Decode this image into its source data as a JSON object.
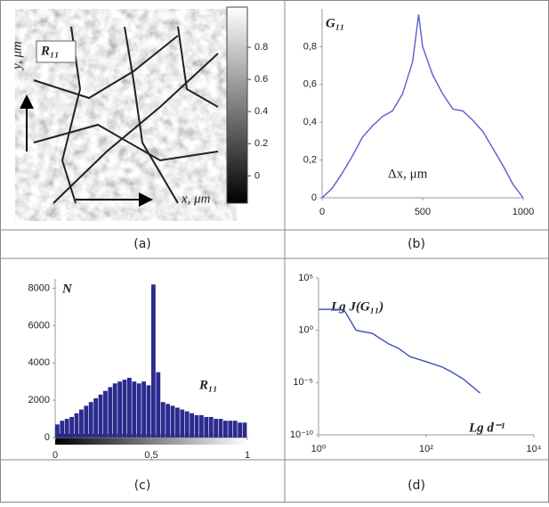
{
  "image_panel": {
    "label": "R₁₁",
    "y_label": "y, μm",
    "x_label": "x, μm",
    "colorbar_lim": [
      -0.17,
      1.05
    ],
    "colorbar_ticks": [
      0,
      0.2,
      0.4,
      0.6,
      0.8
    ]
  },
  "chart_data": [
    {
      "type": "line",
      "title": "G₁₁",
      "annotation": "Δx, μm",
      "color": "#5b5bcf",
      "x": [
        0,
        50,
        100,
        150,
        200,
        250,
        300,
        350,
        400,
        450,
        480,
        500,
        550,
        600,
        650,
        700,
        750,
        800,
        850,
        900,
        950,
        1000
      ],
      "y": [
        0,
        0.05,
        0.13,
        0.22,
        0.32,
        0.38,
        0.43,
        0.46,
        0.55,
        0.72,
        0.97,
        0.8,
        0.65,
        0.55,
        0.47,
        0.46,
        0.41,
        0.35,
        0.26,
        0.17,
        0.07,
        0
      ],
      "xlim": [
        0,
        1000
      ],
      "ylim": [
        0,
        1
      ],
      "xticks": [
        0,
        500,
        1000
      ],
      "yticks": [
        0,
        {
          "value": 0.2,
          "label": "0,2"
        },
        {
          "value": 0.4,
          "label": "0,4"
        },
        {
          "value": 0.6,
          "label": "0,6"
        },
        {
          "value": 0.8,
          "label": "0,8"
        }
      ]
    },
    {
      "type": "histogram",
      "title": "N",
      "annotation": "R₁₁",
      "color": "#2b2b8f",
      "bins": [
        0,
        0.025,
        0.05,
        0.075,
        0.1,
        0.125,
        0.15,
        0.175,
        0.2,
        0.225,
        0.25,
        0.275,
        0.3,
        0.325,
        0.35,
        0.375,
        0.4,
        0.425,
        0.45,
        0.475,
        0.5,
        0.525,
        0.55,
        0.575,
        0.6,
        0.625,
        0.65,
        0.675,
        0.7,
        0.725,
        0.75,
        0.775,
        0.8,
        0.825,
        0.85,
        0.875,
        0.9,
        0.925,
        0.95,
        0.975,
        1
      ],
      "counts": [
        700,
        900,
        1000,
        1100,
        1300,
        1500,
        1700,
        1900,
        2100,
        2300,
        2500,
        2700,
        2900,
        3000,
        3100,
        3200,
        3000,
        2900,
        3000,
        2800,
        8200,
        3500,
        1900,
        1800,
        1700,
        1600,
        1500,
        1400,
        1300,
        1200,
        1200,
        1100,
        1100,
        1000,
        1000,
        900,
        900,
        900,
        800,
        800
      ],
      "xlim": [
        0,
        1
      ],
      "ylim": [
        0,
        8500
      ],
      "xticks": [
        0,
        {
          "value": 0.5,
          "label": "0,5"
        },
        1
      ],
      "yticks": [
        0,
        2000,
        4000,
        6000,
        8000
      ]
    },
    {
      "type": "line",
      "title": "Lg J(G₁₁)",
      "annotation": "Lg d⁻¹",
      "color": "#3a4fb8",
      "xscale": "log",
      "yscale": "log",
      "x": [
        1,
        2,
        3,
        5,
        10,
        20,
        30,
        50,
        100,
        200,
        300,
        500,
        1000
      ],
      "y": [
        100,
        100,
        80,
        1,
        0.5,
        0.05,
        0.02,
        0.003,
        0.001,
        0.0003,
        0.0001,
        2e-05,
        1e-06
      ],
      "xlim": [
        1,
        10000
      ],
      "ylim": [
        1e-10,
        100000
      ],
      "xticks": [
        {
          "value": 1,
          "label": "10⁰"
        },
        {
          "value": 100,
          "label": "10²"
        },
        {
          "value": 10000,
          "label": "10⁴"
        }
      ],
      "yticks": [
        {
          "value": 1e-10,
          "label": "10⁻¹⁰"
        },
        {
          "value": 1e-05,
          "label": "10⁻⁵"
        },
        {
          "value": 1,
          "label": "10⁰"
        },
        {
          "value": 100000,
          "label": "10⁵"
        }
      ]
    }
  ],
  "captions": [
    "(a)",
    "(b)",
    "(c)",
    "(d)"
  ]
}
